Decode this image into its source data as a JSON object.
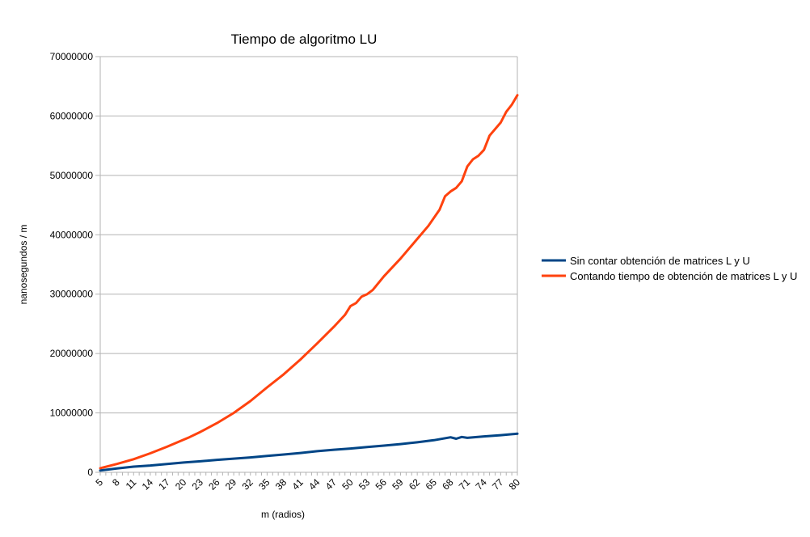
{
  "chart_data": {
    "type": "line",
    "title": "Tiempo de algoritmo LU",
    "xlabel": "m (radios)",
    "ylabel": "nanosegundos / m",
    "ylim": [
      0,
      70000000
    ],
    "yticks": [
      0,
      10000000,
      20000000,
      30000000,
      40000000,
      50000000,
      60000000,
      70000000
    ],
    "ytick_labels": [
      "0",
      "10000000",
      "20000000",
      "30000000",
      "40000000",
      "50000000",
      "60000000",
      "70000000"
    ],
    "xlim": [
      5,
      80
    ],
    "xtick_labels": [
      "5",
      "8",
      "11",
      "14",
      "17",
      "20",
      "23",
      "26",
      "29",
      "32",
      "35",
      "38",
      "41",
      "44",
      "47",
      "50",
      "53",
      "56",
      "59",
      "62",
      "65",
      "68",
      "71",
      "74",
      "77",
      "80"
    ],
    "grid": true,
    "legend_position": "right",
    "series": [
      {
        "name": "Sin contar obtención de matrices L y U",
        "color": "#004586",
        "x": [
          5,
          8,
          11,
          14,
          17,
          20,
          23,
          26,
          29,
          32,
          35,
          38,
          41,
          44,
          47,
          50,
          53,
          56,
          59,
          62,
          65,
          68,
          69,
          70,
          71,
          74,
          77,
          80
        ],
        "values": [
          300000,
          650000,
          950000,
          1150000,
          1400000,
          1650000,
          1850000,
          2100000,
          2300000,
          2500000,
          2750000,
          3000000,
          3250000,
          3550000,
          3800000,
          4000000,
          4250000,
          4500000,
          4750000,
          5050000,
          5400000,
          5900000,
          5650000,
          5950000,
          5800000,
          6050000,
          6250000,
          6500000
        ]
      },
      {
        "name": "Contando tiempo de obtención de matrices L y U",
        "color": "#ff420e",
        "x": [
          5,
          8,
          11,
          14,
          17,
          20,
          21,
          23,
          26,
          29,
          32,
          35,
          38,
          41,
          44,
          47,
          49,
          50,
          51,
          52,
          53,
          54,
          56,
          59,
          62,
          64,
          66,
          67,
          68,
          69,
          70,
          71,
          72,
          73,
          74,
          75,
          77,
          78,
          79,
          80
        ],
        "values": [
          700000,
          1400000,
          2200000,
          3200000,
          4300000,
          5500000,
          5900000,
          6800000,
          8300000,
          10000000,
          12000000,
          14300000,
          16500000,
          19000000,
          21700000,
          24500000,
          26500000,
          28000000,
          28500000,
          29600000,
          30000000,
          30700000,
          33000000,
          36000000,
          39300000,
          41500000,
          44200000,
          46500000,
          47300000,
          47900000,
          49000000,
          51500000,
          52700000,
          53300000,
          54300000,
          56700000,
          58900000,
          60700000,
          61900000,
          63500000
        ]
      }
    ]
  }
}
